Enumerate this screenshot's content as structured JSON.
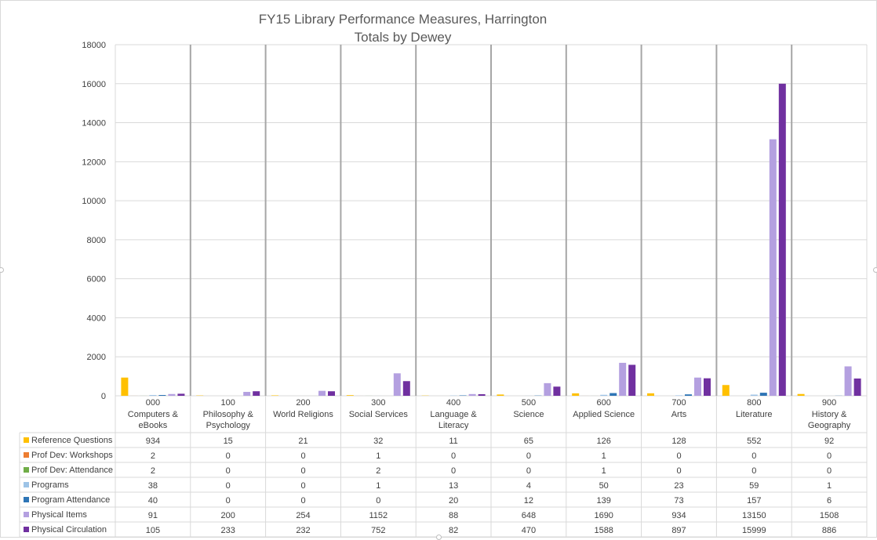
{
  "chart_data": {
    "type": "bar",
    "title": "FY15 Library Performance Measures, Harrington",
    "subtitle": "Totals by Dewey",
    "ylim": [
      0,
      18000
    ],
    "yticks": [
      0,
      2000,
      4000,
      6000,
      8000,
      10000,
      12000,
      14000,
      16000,
      18000
    ],
    "grid": true,
    "legend": "data-table",
    "categories": [
      {
        "code": "000",
        "name": [
          "Computers &",
          "eBooks"
        ]
      },
      {
        "code": "100",
        "name": [
          "Philosophy &",
          "Psychology"
        ]
      },
      {
        "code": "200",
        "name": [
          "World Religions"
        ]
      },
      {
        "code": "300",
        "name": [
          "Social Services"
        ]
      },
      {
        "code": "400",
        "name": [
          "Language &",
          "Literacy"
        ]
      },
      {
        "code": "500",
        "name": [
          "Science"
        ]
      },
      {
        "code": "600",
        "name": [
          "Applied Science"
        ]
      },
      {
        "code": "700",
        "name": [
          "Arts"
        ]
      },
      {
        "code": "800",
        "name": [
          "Literature"
        ]
      },
      {
        "code": "900",
        "name": [
          "History &",
          "Geography"
        ]
      }
    ],
    "series": [
      {
        "name": "Reference Questions",
        "color": "#ffc000",
        "values": [
          934,
          15,
          21,
          32,
          11,
          65,
          126,
          128,
          552,
          92
        ]
      },
      {
        "name": "Prof Dev: Workshops",
        "color": "#ed7d31",
        "values": [
          2,
          0,
          0,
          1,
          0,
          0,
          1,
          0,
          0,
          0
        ]
      },
      {
        "name": "Prof Dev: Attendance",
        "color": "#70ad47",
        "values": [
          2,
          0,
          0,
          2,
          0,
          0,
          1,
          0,
          0,
          0
        ]
      },
      {
        "name": "Programs",
        "color": "#9dc3e6",
        "values": [
          38,
          0,
          0,
          1,
          13,
          4,
          50,
          23,
          59,
          1
        ]
      },
      {
        "name": "Program Attendance",
        "color": "#2e75b6",
        "values": [
          40,
          0,
          0,
          0,
          20,
          12,
          139,
          73,
          157,
          6
        ]
      },
      {
        "name": "Physical Items",
        "color": "#b4a0e0",
        "values": [
          91,
          200,
          254,
          1152,
          88,
          648,
          1690,
          934,
          13150,
          1508
        ]
      },
      {
        "name": "Physical Circulation",
        "color": "#7030a0",
        "values": [
          105,
          233,
          232,
          752,
          82,
          470,
          1588,
          897,
          15999,
          886
        ]
      }
    ]
  }
}
